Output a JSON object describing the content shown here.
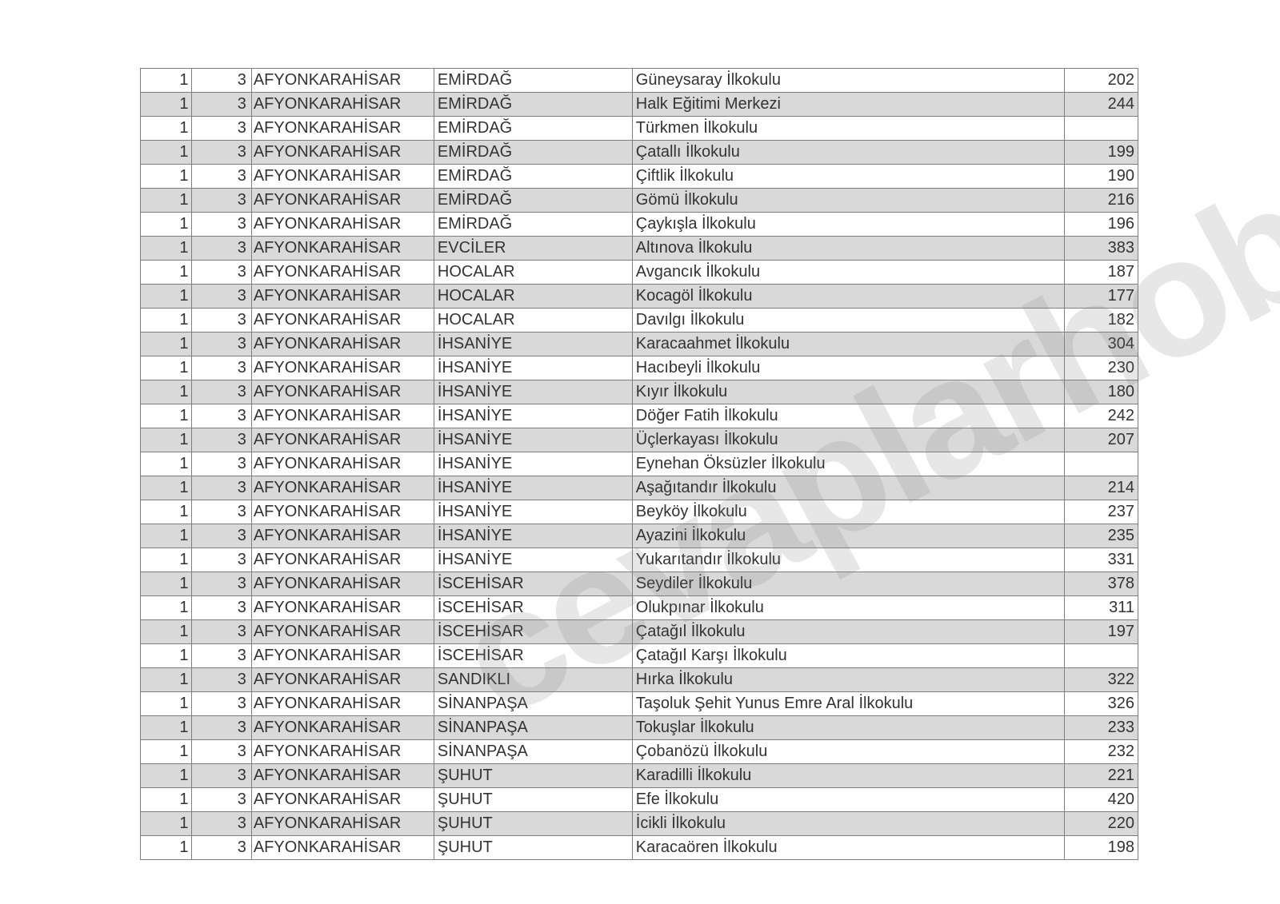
{
  "watermark_text": "cevaplarhobi",
  "table": {
    "columns": [
      {
        "key": "a",
        "class": "c0"
      },
      {
        "key": "b",
        "class": "c1"
      },
      {
        "key": "province",
        "class": "c2"
      },
      {
        "key": "district",
        "class": "c3"
      },
      {
        "key": "school",
        "class": "c4"
      },
      {
        "key": "score",
        "class": "c5"
      }
    ],
    "rows": [
      {
        "a": "1",
        "b": "3",
        "province": "AFYONKARAHİSAR",
        "district": "EMİRDAĞ",
        "school": "Güneysaray İlkokulu",
        "score": "202"
      },
      {
        "a": "1",
        "b": "3",
        "province": "AFYONKARAHİSAR",
        "district": "EMİRDAĞ",
        "school": "Halk Eğitimi Merkezi",
        "score": "244"
      },
      {
        "a": "1",
        "b": "3",
        "province": "AFYONKARAHİSAR",
        "district": "EMİRDAĞ",
        "school": "Türkmen İlkokulu",
        "score": ""
      },
      {
        "a": "1",
        "b": "3",
        "province": "AFYONKARAHİSAR",
        "district": "EMİRDAĞ",
        "school": "Çatallı İlkokulu",
        "score": "199"
      },
      {
        "a": "1",
        "b": "3",
        "province": "AFYONKARAHİSAR",
        "district": "EMİRDAĞ",
        "school": "Çiftlik İlkokulu",
        "score": "190"
      },
      {
        "a": "1",
        "b": "3",
        "province": "AFYONKARAHİSAR",
        "district": "EMİRDAĞ",
        "school": "Gömü İlkokulu",
        "score": "216"
      },
      {
        "a": "1",
        "b": "3",
        "province": "AFYONKARAHİSAR",
        "district": "EMİRDAĞ",
        "school": "Çaykışla İlkokulu",
        "score": "196"
      },
      {
        "a": "1",
        "b": "3",
        "province": "AFYONKARAHİSAR",
        "district": "EVCİLER",
        "school": "Altınova İlkokulu",
        "score": "383"
      },
      {
        "a": "1",
        "b": "3",
        "province": "AFYONKARAHİSAR",
        "district": "HOCALAR",
        "school": "Avgancık İlkokulu",
        "score": "187"
      },
      {
        "a": "1",
        "b": "3",
        "province": "AFYONKARAHİSAR",
        "district": "HOCALAR",
        "school": "Kocagöl İlkokulu",
        "score": "177"
      },
      {
        "a": "1",
        "b": "3",
        "province": "AFYONKARAHİSAR",
        "district": "HOCALAR",
        "school": "Davılgı İlkokulu",
        "score": "182"
      },
      {
        "a": "1",
        "b": "3",
        "province": "AFYONKARAHİSAR",
        "district": "İHSANİYE",
        "school": "Karacaahmet İlkokulu",
        "score": "304"
      },
      {
        "a": "1",
        "b": "3",
        "province": "AFYONKARAHİSAR",
        "district": "İHSANİYE",
        "school": "Hacıbeyli İlkokulu",
        "score": "230"
      },
      {
        "a": "1",
        "b": "3",
        "province": "AFYONKARAHİSAR",
        "district": "İHSANİYE",
        "school": "Kıyır İlkokulu",
        "score": "180"
      },
      {
        "a": "1",
        "b": "3",
        "province": "AFYONKARAHİSAR",
        "district": "İHSANİYE",
        "school": "Döğer Fatih İlkokulu",
        "score": "242"
      },
      {
        "a": "1",
        "b": "3",
        "province": "AFYONKARAHİSAR",
        "district": "İHSANİYE",
        "school": "Üçlerkayası İlkokulu",
        "score": "207"
      },
      {
        "a": "1",
        "b": "3",
        "province": "AFYONKARAHİSAR",
        "district": "İHSANİYE",
        "school": "Eynehan Öksüzler İlkokulu",
        "score": ""
      },
      {
        "a": "1",
        "b": "3",
        "province": "AFYONKARAHİSAR",
        "district": "İHSANİYE",
        "school": "Aşağıtandır İlkokulu",
        "score": "214"
      },
      {
        "a": "1",
        "b": "3",
        "province": "AFYONKARAHİSAR",
        "district": "İHSANİYE",
        "school": "Beyköy İlkokulu",
        "score": "237"
      },
      {
        "a": "1",
        "b": "3",
        "province": "AFYONKARAHİSAR",
        "district": "İHSANİYE",
        "school": "Ayazini İlkokulu",
        "score": "235"
      },
      {
        "a": "1",
        "b": "3",
        "province": "AFYONKARAHİSAR",
        "district": "İHSANİYE",
        "school": "Yukarıtandır İlkokulu",
        "score": "331"
      },
      {
        "a": "1",
        "b": "3",
        "province": "AFYONKARAHİSAR",
        "district": "İSCEHİSAR",
        "school": "Seydiler İlkokulu",
        "score": "378"
      },
      {
        "a": "1",
        "b": "3",
        "province": "AFYONKARAHİSAR",
        "district": "İSCEHİSAR",
        "school": "Olukpınar İlkokulu",
        "score": "311"
      },
      {
        "a": "1",
        "b": "3",
        "province": "AFYONKARAHİSAR",
        "district": "İSCEHİSAR",
        "school": "Çatağıl İlkokulu",
        "score": "197"
      },
      {
        "a": "1",
        "b": "3",
        "province": "AFYONKARAHİSAR",
        "district": "İSCEHİSAR",
        "school": "Çatağıl Karşı İlkokulu",
        "score": ""
      },
      {
        "a": "1",
        "b": "3",
        "province": "AFYONKARAHİSAR",
        "district": "SANDIKLI",
        "school": "Hırka İlkokulu",
        "score": "322"
      },
      {
        "a": "1",
        "b": "3",
        "province": "AFYONKARAHİSAR",
        "district": "SİNANPAŞA",
        "school": "Taşoluk Şehit Yunus Emre Aral İlkokulu",
        "score": "326"
      },
      {
        "a": "1",
        "b": "3",
        "province": "AFYONKARAHİSAR",
        "district": "SİNANPAŞA",
        "school": "Tokuşlar İlkokulu",
        "score": "233"
      },
      {
        "a": "1",
        "b": "3",
        "province": "AFYONKARAHİSAR",
        "district": "SİNANPAŞA",
        "school": "Çobanözü İlkokulu",
        "score": "232"
      },
      {
        "a": "1",
        "b": "3",
        "province": "AFYONKARAHİSAR",
        "district": "ŞUHUT",
        "school": "Karadilli İlkokulu",
        "score": "221"
      },
      {
        "a": "1",
        "b": "3",
        "province": "AFYONKARAHİSAR",
        "district": "ŞUHUT",
        "school": "Efe İlkokulu",
        "score": "420"
      },
      {
        "a": "1",
        "b": "3",
        "province": "AFYONKARAHİSAR",
        "district": "ŞUHUT",
        "school": "İcikli İlkokulu",
        "score": "220"
      },
      {
        "a": "1",
        "b": "3",
        "province": "AFYONKARAHİSAR",
        "district": "ŞUHUT",
        "school": "Karacaören İlkokulu",
        "score": "198"
      }
    ]
  }
}
